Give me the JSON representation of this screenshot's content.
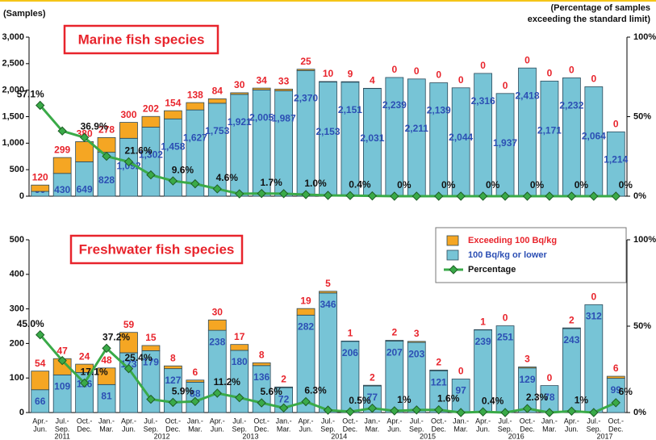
{
  "chart_data": [
    {
      "type": "bar",
      "title": "Marine fish species",
      "ylabel": "(Samples)",
      "y2label": [
        "(Percentage of samples",
        "exceeding the standard limit)"
      ],
      "ylim": [
        0,
        3000
      ],
      "yticks": [
        0,
        500,
        {
          "value": 1000,
          "label": "1,000"
        },
        {
          "value": 1500,
          "label": "1,500"
        },
        {
          "value": 2000,
          "label": "2,000"
        },
        {
          "value": 2500,
          "label": "2,500"
        },
        {
          "value": 3000,
          "label": "3,000"
        }
      ],
      "y2lim": [
        0,
        100
      ],
      "y2ticks": [
        {
          "value": 0,
          "label": "0%"
        },
        {
          "value": 50,
          "label": "50%"
        },
        {
          "value": 100,
          "label": "100%"
        }
      ],
      "series": [
        {
          "color": "#77c4d6",
          "values": [
            90,
            430,
            649,
            828,
            1092,
            1302,
            1458,
            1627,
            1753,
            1921,
            2005,
            1987,
            2370,
            2153,
            2151,
            2031,
            2239,
            2211,
            2139,
            2044,
            2316,
            1937,
            2418,
            2171,
            2232,
            2064,
            1214
          ],
          "value_labels": [
            "90",
            "430",
            "649",
            "828",
            "1,092",
            "1,302",
            "1,458",
            "1,627",
            "1,753",
            "1,921",
            "2,005",
            "1,987",
            "2,370",
            "2,153",
            "2,151",
            "2,031",
            "2,239",
            "2,211",
            "2,139",
            "2,044",
            "2,316",
            "1,937",
            "2,418",
            "2,171",
            "2,232",
            "2,064",
            "1,214"
          ]
        },
        {
          "color": "#f5a623",
          "values": [
            120,
            299,
            380,
            278,
            300,
            202,
            154,
            138,
            84,
            30,
            34,
            33,
            25,
            10,
            9,
            4,
            0,
            0,
            0,
            0,
            0,
            0,
            0,
            0,
            0,
            0,
            0
          ]
        },
        {
          "type": "line",
          "axis": "y2",
          "color": "#3aaa48",
          "values": [
            57.1,
            41.0,
            36.9,
            25.1,
            21.6,
            13.4,
            9.6,
            7.8,
            4.6,
            1.5,
            1.7,
            1.6,
            1.0,
            0.5,
            0.4,
            0.2,
            0,
            0,
            0,
            0,
            0,
            0,
            0,
            0,
            0,
            0,
            0
          ],
          "value_labels": [
            "57.1%",
            null,
            "36.9%",
            null,
            "21.6%",
            null,
            "9.6%",
            null,
            "4.6%",
            null,
            "1.7%",
            null,
            "1.0%",
            null,
            "0.4%",
            null,
            "0%",
            null,
            "0%",
            null,
            "0%",
            null,
            "0%",
            null,
            "0%",
            null,
            "0%"
          ]
        }
      ]
    },
    {
      "type": "bar",
      "title": "Freshwater fish species",
      "legend": "upper right",
      "categories": [
        [
          "Apr.-",
          "Jun."
        ],
        [
          "Jul.-",
          "Sep."
        ],
        [
          "Oct.-",
          "Dec."
        ],
        [
          "Jan.-",
          "Mar."
        ],
        [
          "Apr.-",
          "Jun."
        ],
        [
          "Jul.-",
          "Sep."
        ],
        [
          "Oct.-",
          "Dec."
        ],
        [
          "Jan.-",
          "Mar."
        ],
        [
          "Apr.-",
          "Jun."
        ],
        [
          "Jul.-",
          "Sep."
        ],
        [
          "Oct.-",
          "Dec."
        ],
        [
          "Jan.-",
          "Mar."
        ],
        [
          "Apr.-",
          "Jun."
        ],
        [
          "Jul.-",
          "Sep."
        ],
        [
          "Oct.-",
          "Dec."
        ],
        [
          "Jan.-",
          "Mar."
        ],
        [
          "Apr.-",
          "Jun."
        ],
        [
          "Jul.-",
          "Sep."
        ],
        [
          "Oct.-",
          "Dec."
        ],
        [
          "Jan.-",
          "Mar."
        ],
        [
          "Apr.-",
          "Jun."
        ],
        [
          "Jul.-",
          "Sep."
        ],
        [
          "Oct.-",
          "Dec."
        ],
        [
          "Jan.-",
          "Mar."
        ],
        [
          "Apr.-",
          "Jun."
        ],
        [
          "Jul.-",
          "Sep."
        ],
        [
          "Oct.-",
          "Dec."
        ]
      ],
      "years": [
        null,
        "2011",
        null,
        null,
        null,
        "2012",
        null,
        null,
        null,
        "2013",
        null,
        null,
        null,
        "2014",
        null,
        null,
        null,
        "2015",
        null,
        null,
        null,
        "2016",
        null,
        null,
        null,
        "2017",
        null
      ],
      "ylim": [
        0,
        500
      ],
      "yticks": [
        0,
        100,
        200,
        300,
        400,
        500
      ],
      "y2lim": [
        0,
        100
      ],
      "y2ticks": [
        {
          "value": 0,
          "label": "0%"
        },
        {
          "value": 50,
          "label": "50%"
        },
        {
          "value": 100,
          "label": "100%"
        }
      ],
      "series": [
        {
          "name": "100 Bq/kg or lower",
          "color": "#77c4d6",
          "values": [
            66,
            109,
            116,
            81,
            173,
            179,
            127,
            88,
            238,
            180,
            136,
            72,
            282,
            346,
            206,
            77,
            207,
            203,
            121,
            97,
            239,
            251,
            129,
            78,
            243,
            312,
            99
          ]
        },
        {
          "name": "Exceeding 100 Bq/kg",
          "color": "#f5a623",
          "values": [
            54,
            47,
            24,
            48,
            59,
            15,
            8,
            6,
            30,
            17,
            8,
            2,
            19,
            5,
            1,
            2,
            2,
            3,
            2,
            0,
            1,
            0,
            3,
            0,
            2,
            0,
            6
          ]
        },
        {
          "name": "Percentage",
          "type": "line",
          "axis": "y2",
          "color": "#3aaa48",
          "values": [
            45.0,
            30.1,
            17.1,
            37.2,
            25.4,
            7.7,
            5.9,
            6.4,
            11.2,
            8.6,
            5.6,
            2.7,
            6.3,
            1.4,
            0.5,
            2.5,
            1.0,
            1.5,
            1.6,
            0,
            0.4,
            0,
            2.3,
            0,
            0.8,
            0,
            5.7
          ],
          "value_labels": [
            "45.0%",
            null,
            "17.1%",
            "37.2%",
            "25.4%",
            null,
            "5.9%",
            null,
            "11.2%",
            null,
            "5.6%",
            null,
            "6.3%",
            null,
            "0.5%",
            null,
            "1%",
            null,
            "1.6%",
            null,
            "0.4%",
            null,
            "2.3%",
            null,
            "1%",
            null,
            "6%"
          ]
        }
      ]
    }
  ]
}
